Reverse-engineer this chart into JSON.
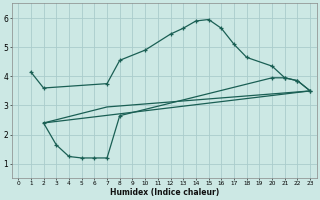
{
  "bg_color": "#cce8e4",
  "grid_color": "#aacccc",
  "line_color": "#1a5f54",
  "xlabel": "Humidex (Indice chaleur)",
  "xlim": [
    -0.5,
    23.5
  ],
  "ylim": [
    0.5,
    6.5
  ],
  "xticks": [
    0,
    1,
    2,
    3,
    4,
    5,
    6,
    7,
    8,
    9,
    10,
    11,
    12,
    13,
    14,
    15,
    16,
    17,
    18,
    19,
    20,
    21,
    22,
    23
  ],
  "yticks": [
    1,
    2,
    3,
    4,
    5,
    6
  ],
  "line1_upper": {
    "x": [
      1,
      2,
      7,
      8,
      10,
      12,
      13,
      14,
      15,
      16,
      17,
      18,
      20,
      21,
      22,
      23
    ],
    "y": [
      4.15,
      3.6,
      3.75,
      4.55,
      4.9,
      5.45,
      5.65,
      5.9,
      5.95,
      5.65,
      5.1,
      4.65,
      4.35,
      3.95,
      3.85,
      3.5
    ]
  },
  "line2_lower": {
    "x": [
      2,
      3,
      4,
      5,
      6,
      7,
      8,
      20,
      21,
      22,
      23
    ],
    "y": [
      2.4,
      1.65,
      1.25,
      1.2,
      1.2,
      1.2,
      2.65,
      3.95,
      3.95,
      3.85,
      3.5
    ]
  },
  "line3_mid": {
    "x": [
      2,
      7,
      23
    ],
    "y": [
      2.4,
      2.95,
      3.5
    ]
  },
  "line4_straight": {
    "comment": "straight diagonal from x=2 y~2.4 to x=23 y~3.5",
    "x": [
      2,
      23
    ],
    "y": [
      2.4,
      3.5
    ]
  }
}
